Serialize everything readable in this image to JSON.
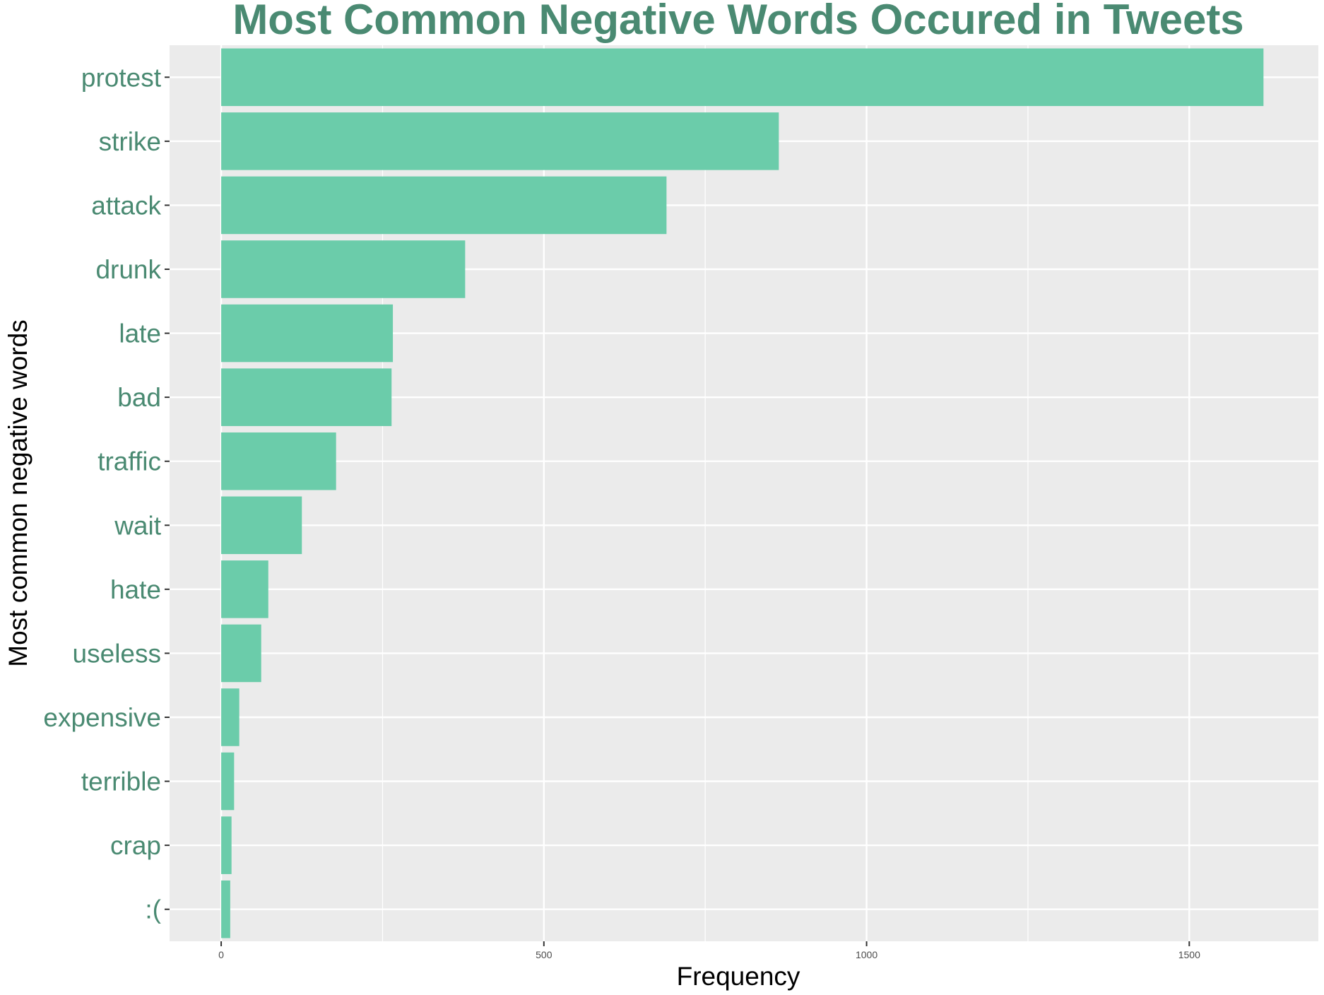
{
  "chart_data": {
    "type": "bar",
    "orientation": "horizontal",
    "title": "Most Common Negative Words Occured in Tweets",
    "xlabel": "Frequency",
    "ylabel": "Most common negative words",
    "categories": [
      "protest",
      "strike",
      "attack",
      "drunk",
      "late",
      "bad",
      "traffic",
      "wait",
      "hate",
      "useless",
      "expensive",
      "terrible",
      "crap",
      ":("
    ],
    "values": [
      1615,
      864,
      690,
      378,
      266,
      264,
      178,
      125,
      73,
      62,
      28,
      20,
      16,
      14
    ],
    "xlim": [
      -80,
      1700
    ],
    "x_ticks": [
      0,
      500,
      1000,
      1500
    ],
    "x_tick_labels": [
      "0",
      "500",
      "1000",
      "1500"
    ],
    "grid": true,
    "legend": "none"
  },
  "colors": {
    "bar": "#6bccaa",
    "panel_background": "#ebebeb",
    "grid": "#ffffff",
    "title": "#4a8a72",
    "category_label": "#4a8a72",
    "axis_title": "#000000",
    "tick_label": "#4d4d4d"
  }
}
